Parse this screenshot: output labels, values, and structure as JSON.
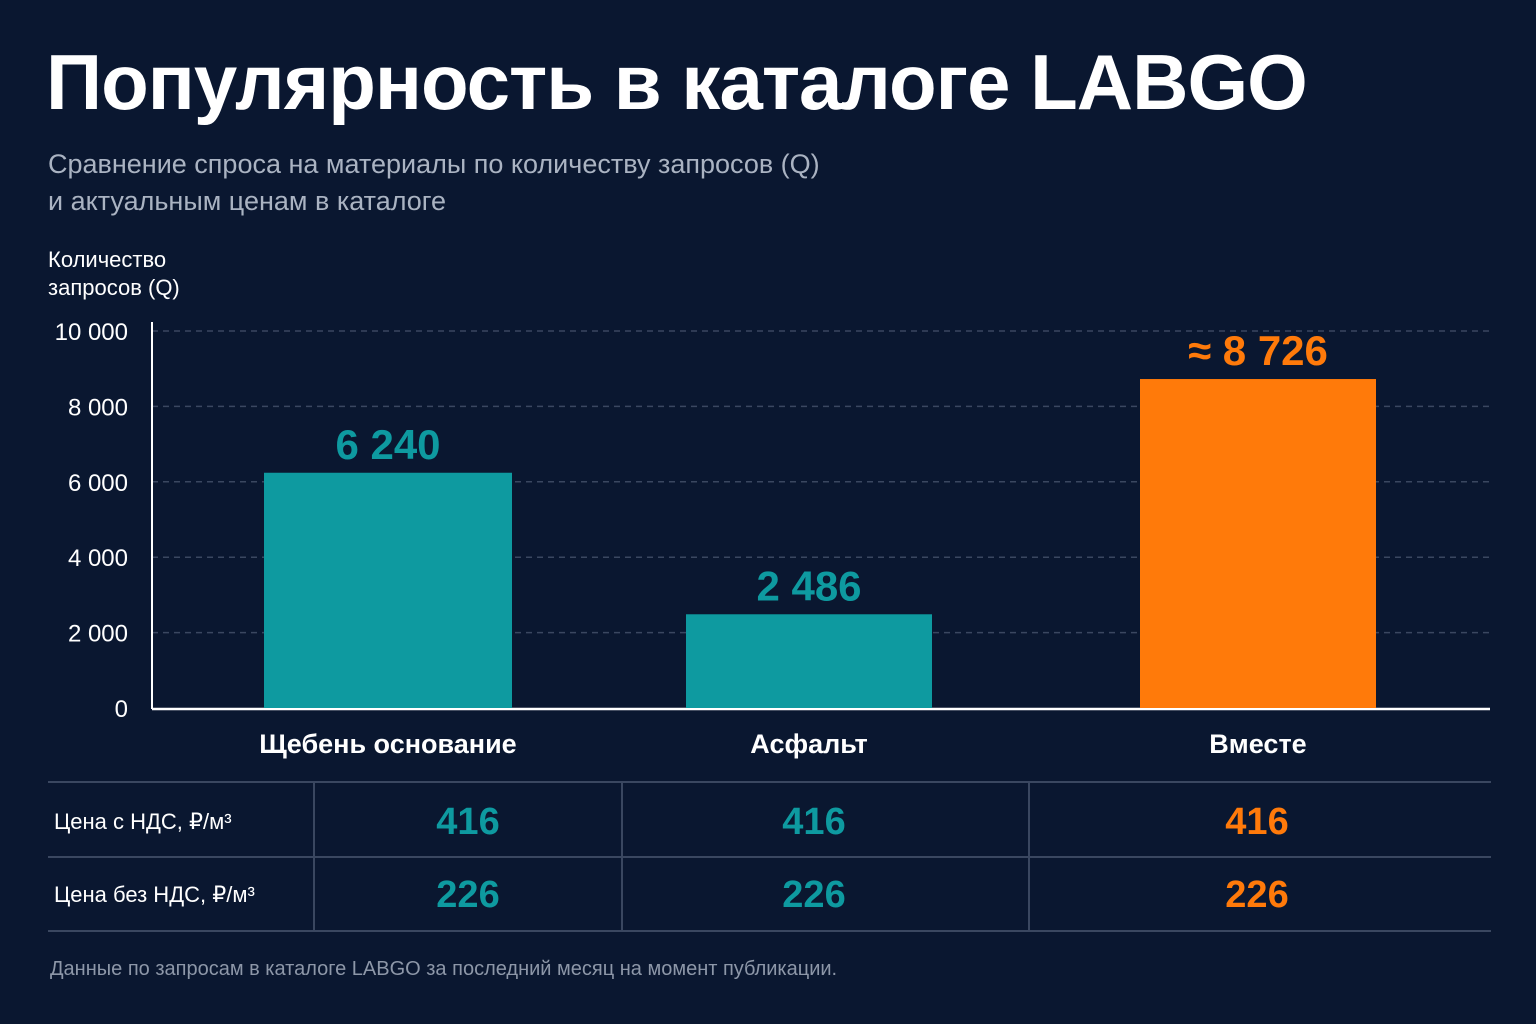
{
  "title": "Популярность в каталоге LABGO",
  "subtitle": [
    "Сравнение спроса на материалы по количеству запросов (Q)",
    "и актуальным ценам в каталоге"
  ],
  "colors": {
    "background": "#0a1730",
    "teal": "#0e9aa0",
    "orange": "#ff7a0a",
    "grid": "#3a4760",
    "subtitle": "#aab3c2"
  },
  "chart_data": {
    "type": "bar",
    "title": "Популярность в каталоге LABGO",
    "ylabel": [
      "Количество",
      "запросов (Q)"
    ],
    "ylim": [
      0,
      10000
    ],
    "yticks": [
      0,
      2000,
      4000,
      6000,
      8000,
      10000
    ],
    "ytick_labels": [
      "0",
      "2 000",
      "4 000",
      "6 000",
      "8 000",
      "10 000"
    ],
    "categories": [
      "Щебень основание",
      "Асфальт",
      "Вместе"
    ],
    "values": [
      6240,
      2486,
      8726
    ],
    "value_labels": [
      "6 240",
      "2 486",
      "≈ 8 726"
    ],
    "bar_colors": [
      "#0e9aa0",
      "#0e9aa0",
      "#ff7a0a"
    ],
    "grid": true
  },
  "price_table": {
    "rows": [
      {
        "label": "Цена с НДС, ₽/м³",
        "values": [
          "416",
          "416",
          "416"
        ]
      },
      {
        "label": "Цена без НДС, ₽/м³",
        "values": [
          "226",
          "226",
          "226"
        ]
      }
    ]
  },
  "footnote": "Данные по запросам в каталоге LABGO за последний месяц на момент публикации."
}
